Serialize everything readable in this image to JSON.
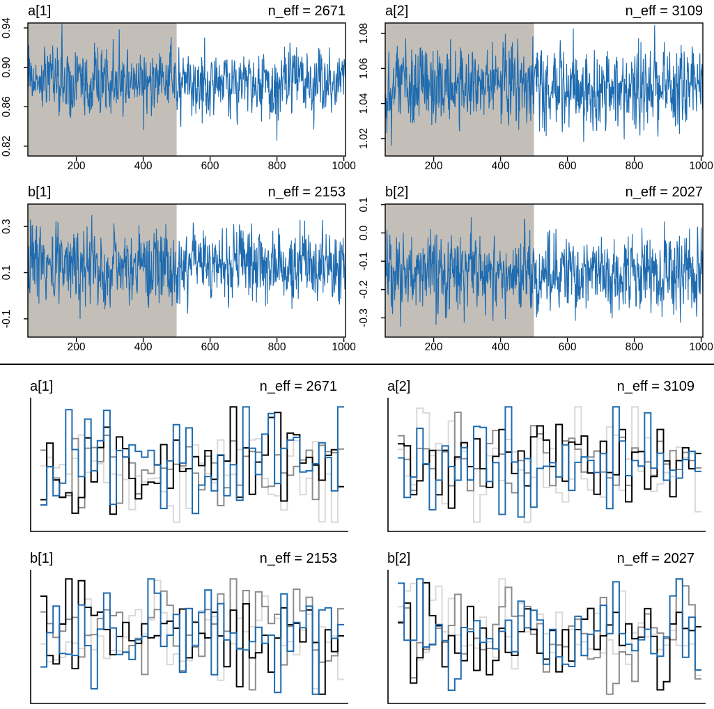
{
  "figure": {
    "description": "MCMC chain diagnostics: trace plots (top) and trace-rank plots (bottom)",
    "divider_color": "#000000"
  },
  "colors": {
    "trace_blue": "#1E6BB0",
    "warmup_shade": "#C3BFB8",
    "axis_black": "#000000",
    "chain_colors": [
      "#D9D9D9",
      "#8C8C8C",
      "#000000",
      "#1E6BB0"
    ]
  },
  "chart_data": [
    {
      "panel": "trace-a1",
      "type": "line",
      "subtype": "mcmc-trace",
      "title": "a[1]",
      "annotation": "n_eff = 2671",
      "n_eff": 2671,
      "xlim": [
        55,
        1005
      ],
      "xticks": [
        200,
        400,
        600,
        800,
        1000
      ],
      "ylim": [
        0.81,
        0.945
      ],
      "yticks": [
        {
          "v": 0.82,
          "label": "0.82"
        },
        {
          "v": 0.86,
          "label": "0.86"
        },
        {
          "v": 0.9,
          "label": "0.90"
        },
        {
          "v": 0.94,
          "label": "0.94"
        }
      ],
      "warmup_end": 500,
      "warmup_shade": "#C3BFB8",
      "line_color": "#1E6BB0",
      "grid": false,
      "legend": "none",
      "series": {
        "name": "chain",
        "mean": 0.886,
        "sd": 0.0165,
        "n": 950,
        "seed": 101
      }
    },
    {
      "panel": "trace-a2",
      "type": "line",
      "subtype": "mcmc-trace",
      "title": "a[2]",
      "annotation": "n_eff = 3109",
      "n_eff": 3109,
      "xlim": [
        55,
        1005
      ],
      "xticks": [
        200,
        400,
        600,
        800,
        1000
      ],
      "ylim": [
        1.01,
        1.086
      ],
      "yticks": [
        {
          "v": 1.02,
          "label": "1.02"
        },
        {
          "v": 1.04,
          "label": "1.04"
        },
        {
          "v": 1.06,
          "label": "1.06"
        },
        {
          "v": 1.08,
          "label": "1.08"
        }
      ],
      "warmup_end": 500,
      "warmup_shade": "#C3BFB8",
      "line_color": "#1E6BB0",
      "grid": false,
      "legend": "none",
      "series": {
        "name": "chain",
        "mean": 1.05,
        "sd": 0.0115,
        "n": 950,
        "seed": 202
      }
    },
    {
      "panel": "trace-b1",
      "type": "line",
      "subtype": "mcmc-trace",
      "title": "b[1]",
      "annotation": "n_eff = 2153",
      "n_eff": 2153,
      "xlim": [
        55,
        1005
      ],
      "xticks": [
        200,
        400,
        600,
        800,
        1000
      ],
      "ylim": [
        -0.179,
        0.397
      ],
      "yticks": [
        {
          "v": -0.1,
          "label": "-0.1"
        },
        {
          "v": 0.1,
          "label": "0.1"
        },
        {
          "v": 0.3,
          "label": "0.3"
        }
      ],
      "warmup_end": 500,
      "warmup_shade": "#C3BFB8",
      "line_color": "#1E6BB0",
      "grid": false,
      "legend": "none",
      "series": {
        "name": "chain",
        "mean": 0.135,
        "sd": 0.079,
        "n": 950,
        "seed": 303
      }
    },
    {
      "panel": "trace-b2",
      "type": "line",
      "subtype": "mcmc-trace",
      "title": "b[2]",
      "annotation": "n_eff = 2027",
      "n_eff": 2027,
      "xlim": [
        55,
        1005
      ],
      "xticks": [
        200,
        400,
        600,
        800,
        1000
      ],
      "ylim": [
        -0.368,
        0.102
      ],
      "yticks": [
        {
          "v": 0.1,
          "label": "0.1"
        },
        {
          "v": 0.0,
          "label": "0.0"
        },
        {
          "v": -0.1,
          "label": "-0.1"
        },
        {
          "v": -0.2,
          "label": "-0.2"
        },
        {
          "v": -0.3,
          "label": "-0.3"
        }
      ],
      "warmup_end": 500,
      "warmup_shade": "#C3BFB8",
      "line_color": "#1E6BB0",
      "grid": false,
      "legend": "none",
      "series": {
        "name": "chain",
        "mean": -0.142,
        "sd": 0.068,
        "n": 950,
        "seed": 404
      }
    },
    {
      "panel": "rank-a1",
      "type": "line",
      "subtype": "trace-rank-histogram",
      "title": "a[1]",
      "annotation": "n_eff = 2671",
      "n_eff": 2671,
      "n_chains": 4,
      "n_bins": 48,
      "chain_colors": [
        "#D9D9D9",
        "#8C8C8C",
        "#000000",
        "#1E6BB0"
      ],
      "grid": false,
      "legend": "none",
      "seed": 511
    },
    {
      "panel": "rank-a2",
      "type": "line",
      "subtype": "trace-rank-histogram",
      "title": "a[2]",
      "annotation": "n_eff = 3109",
      "n_eff": 3109,
      "n_chains": 4,
      "n_bins": 48,
      "chain_colors": [
        "#D9D9D9",
        "#8C8C8C",
        "#000000",
        "#1E6BB0"
      ],
      "grid": false,
      "legend": "none",
      "seed": 622
    },
    {
      "panel": "rank-b1",
      "type": "line",
      "subtype": "trace-rank-histogram",
      "title": "b[1]",
      "annotation": "n_eff = 2153",
      "n_eff": 2153,
      "n_chains": 4,
      "n_bins": 48,
      "chain_colors": [
        "#D9D9D9",
        "#8C8C8C",
        "#000000",
        "#1E6BB0"
      ],
      "grid": false,
      "legend": "none",
      "seed": 733
    },
    {
      "panel": "rank-b2",
      "type": "line",
      "subtype": "trace-rank-histogram",
      "title": "b[2]",
      "annotation": "n_eff = 2027",
      "n_eff": 2027,
      "n_chains": 4,
      "n_bins": 48,
      "chain_colors": [
        "#D9D9D9",
        "#8C8C8C",
        "#000000",
        "#1E6BB0"
      ],
      "grid": false,
      "legend": "none",
      "seed": 844
    }
  ]
}
